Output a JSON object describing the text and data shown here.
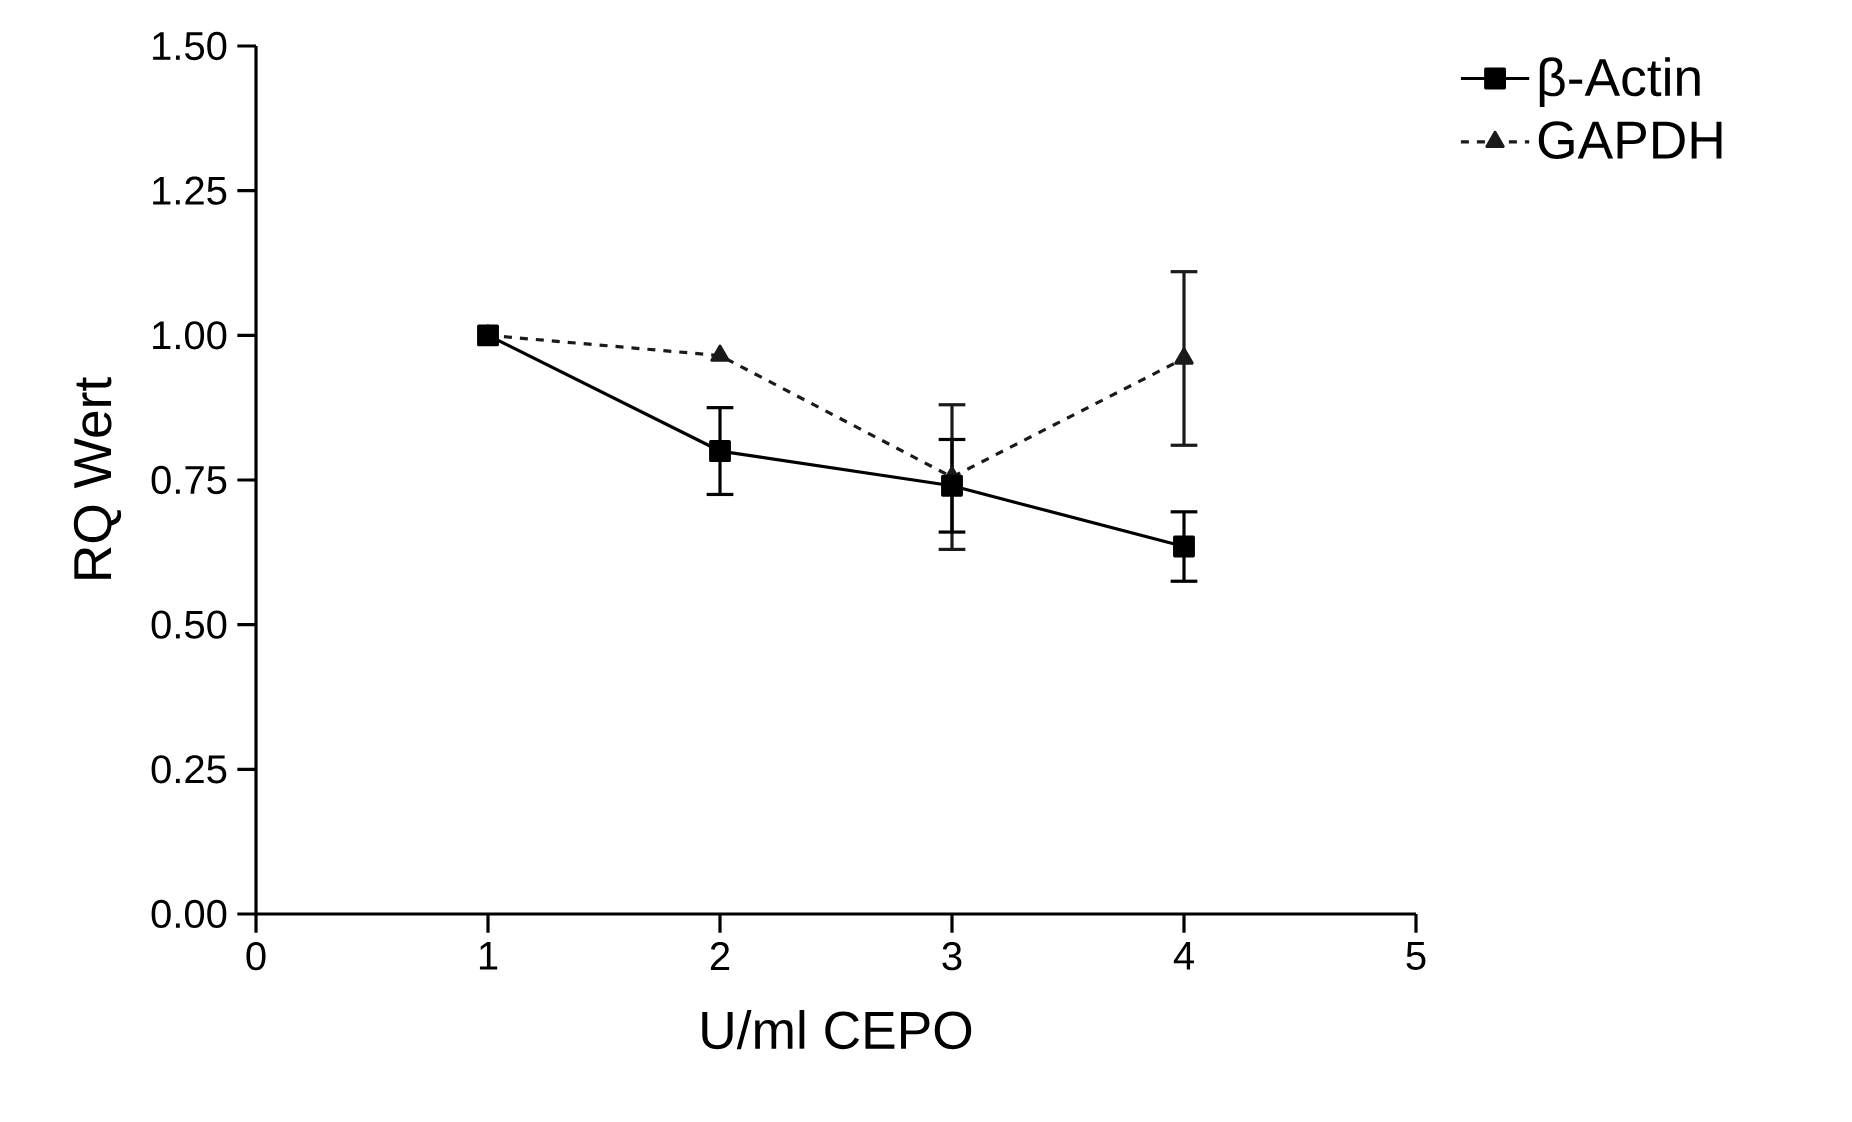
{
  "chart_data": {
    "type": "line",
    "xlabel": "U/ml CEPO",
    "ylabel": "RQ Wert",
    "legend": "top right",
    "grid": false,
    "xlim": [
      0,
      5
    ],
    "xticks": [
      0,
      1,
      2,
      3,
      4,
      5
    ],
    "ylim": [
      0,
      1.5
    ],
    "yticks": [
      {
        "value": 0,
        "label": "0.00"
      },
      {
        "value": 0.25,
        "label": "0.25"
      },
      {
        "value": 0.5,
        "label": "0.50"
      },
      {
        "value": 0.75,
        "label": "0.75"
      },
      {
        "value": 1,
        "label": "1.00"
      },
      {
        "value": 1.25,
        "label": "1.25"
      },
      {
        "value": 1.5,
        "label": "1.50"
      }
    ],
    "x": [
      1,
      2,
      3,
      4
    ],
    "series": [
      {
        "name": "β-Actin",
        "color": "#000000",
        "marker": "square",
        "line_style": "solid",
        "values": [
          1.0,
          0.8,
          0.74,
          0.635
        ],
        "errors": [
          null,
          0.075,
          0.08,
          0.06
        ]
      },
      {
        "name": "GAPDH",
        "color": "#1a1a1a",
        "marker": "triangle",
        "line_style": "dashed",
        "values": [
          1.0,
          0.965,
          0.755,
          0.96
        ],
        "errors": [
          null,
          null,
          0.125,
          0.15
        ]
      }
    ]
  }
}
